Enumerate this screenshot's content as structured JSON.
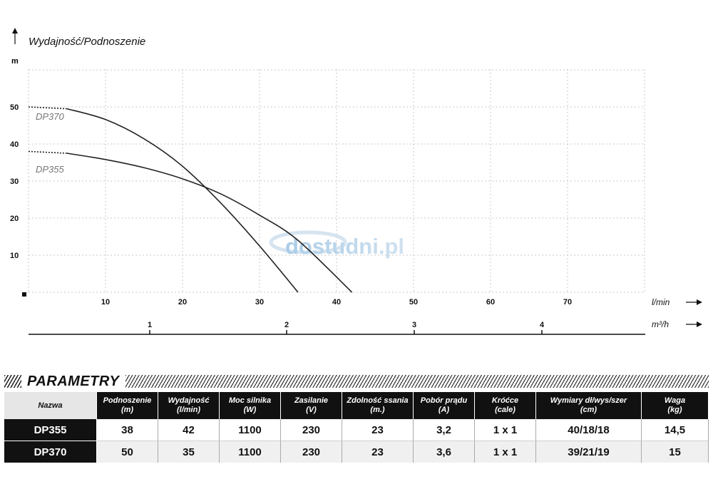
{
  "chart_data": {
    "type": "line",
    "title": "Wydajność/Podnoszenie",
    "y_unit": "m",
    "x_unit": "l/min",
    "x2_unit": "m³/h",
    "xlim": [
      0,
      70
    ],
    "ylim": [
      0,
      50
    ],
    "x_ticks": [
      10,
      20,
      30,
      40,
      50,
      60,
      70
    ],
    "y_ticks": [
      10,
      20,
      30,
      40,
      50
    ],
    "x2_ticks": [
      {
        "label": "1",
        "lmin": 16.7
      },
      {
        "label": "2",
        "lmin": 33.3
      },
      {
        "label": "3",
        "lmin": 50
      },
      {
        "label": "4",
        "lmin": 66.7
      }
    ],
    "grid": true,
    "series": [
      {
        "name": "DP370",
        "x": [
          0,
          5,
          10,
          15,
          20,
          25,
          30,
          35
        ],
        "y": [
          50,
          49.5,
          46.6,
          41.4,
          34,
          24,
          12.5,
          0
        ]
      },
      {
        "name": "DP355",
        "x": [
          0,
          5,
          10,
          15,
          20,
          25,
          30,
          35,
          42
        ],
        "y": [
          38,
          37.5,
          35.8,
          33.6,
          30.6,
          26.5,
          20.8,
          14,
          0
        ]
      }
    ]
  },
  "watermark": "dostudni.pl",
  "params": {
    "title": "PARAMETRY",
    "headers": [
      {
        "l1": "Nazwa",
        "l2": ""
      },
      {
        "l1": "Podnoszenie",
        "l2": "(m)"
      },
      {
        "l1": "Wydajność",
        "l2": "(l/min)"
      },
      {
        "l1": "Moc silnika",
        "l2": "(W)"
      },
      {
        "l1": "Zasilanie",
        "l2": "(V)"
      },
      {
        "l1": "Zdolność ssania",
        "l2": "(m.)"
      },
      {
        "l1": "Pobór prądu",
        "l2": "(A)"
      },
      {
        "l1": "Króćce",
        "l2": "(cale)"
      },
      {
        "l1": "Wymiary dł/wys/szer",
        "l2": "(cm)"
      },
      {
        "l1": "Waga",
        "l2": "(kg)"
      }
    ],
    "rows": [
      [
        "DP355",
        "38",
        "42",
        "1100",
        "230",
        "23",
        "3,2",
        "1 x 1",
        "40/18/18",
        "14,5"
      ],
      [
        "DP370",
        "50",
        "35",
        "1100",
        "230",
        "23",
        "3,6",
        "1 x 1",
        "39/21/19",
        "15"
      ]
    ]
  }
}
